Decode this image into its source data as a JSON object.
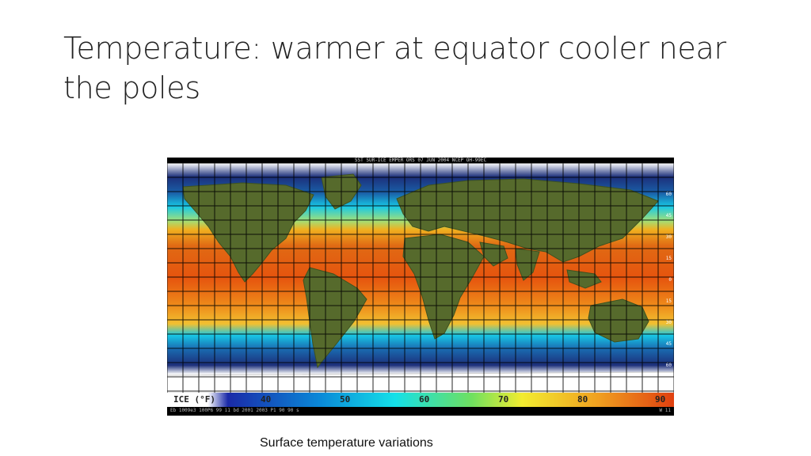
{
  "slide": {
    "title": "Temperature: warmer at equator cooler near the poles",
    "caption": "Surface temperature variations"
  },
  "map": {
    "header_text": "SST SUR-ICE EMPER ORS 07 JUN 2004 NCEP OH-99EC",
    "footer_text": "Eb 1009e3   100P6 99   i1 bd 2001   2003 P1   90 90 s",
    "footer_right": "W 11",
    "scale": {
      "labels": [
        "ICE (°F)",
        "40",
        "50",
        "60",
        "70",
        "80",
        "90"
      ],
      "colors": [
        "#ffffff",
        "#1a2aa8",
        "#0a88d8",
        "#14e0e8",
        "#f2ec30",
        "#f0a020",
        "#e04010"
      ]
    },
    "lat_labels": [
      "60",
      "45",
      "30",
      "15",
      "0",
      "15",
      "30",
      "45",
      "60"
    ],
    "colors": {
      "land": "#566a2c",
      "land_dark": "#3e5220",
      "ice": "#ffffff",
      "cold": "#1a3a7c",
      "cyan": "#18c8e6",
      "warm": "#f0a020",
      "hot": "#e05410",
      "grid": "#000000"
    }
  }
}
